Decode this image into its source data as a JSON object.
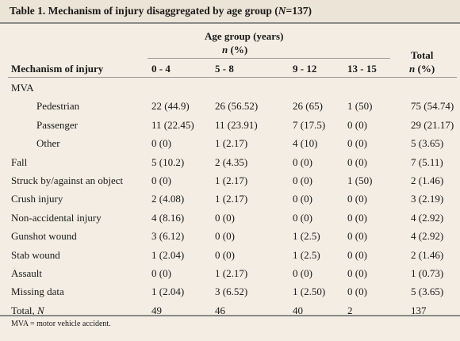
{
  "title": {
    "prefix": "Table 1. Mechanism of injury disaggregated by age group (",
    "n_symbol": "N",
    "suffix": "=137)"
  },
  "header": {
    "mechanism": "Mechanism of injury",
    "age_group": "Age group (years)",
    "age_group_unit_n": "n",
    "age_group_unit_pct": " (%)",
    "age_cols": [
      "0 - 4",
      "5 - 8",
      "9 - 12",
      "13 - 15"
    ],
    "total": "Total",
    "total_unit_n": "n",
    "total_unit_pct": " (%)"
  },
  "rows": [
    {
      "label": "MVA",
      "indent": 0,
      "cells": [
        "",
        "",
        "",
        "",
        ""
      ]
    },
    {
      "label": "Pedestrian",
      "indent": 2,
      "cells": [
        "22 (44.9)",
        "26 (56.52)",
        "26 (65)",
        "1 (50)",
        "75 (54.74)"
      ]
    },
    {
      "label": "Passenger",
      "indent": 2,
      "cells": [
        "11 (22.45)",
        "11 (23.91)",
        "7 (17.5)",
        "0 (0)",
        "29 (21.17)"
      ]
    },
    {
      "label": "Other",
      "indent": 2,
      "cells": [
        "0 (0)",
        "1 (2.17)",
        "4 (10)",
        "0 (0)",
        "5 (3.65)"
      ]
    },
    {
      "label": "Fall",
      "indent": 0,
      "cells": [
        "5 (10.2)",
        "2 (4.35)",
        "0 (0)",
        "0 (0)",
        "7 (5.11)"
      ]
    },
    {
      "label": "Struck by/against an object",
      "indent": 0,
      "cells": [
        "0 (0)",
        "1 (2.17)",
        "0 (0)",
        "1 (50)",
        "2 (1.46)"
      ]
    },
    {
      "label": "Crush injury",
      "indent": 0,
      "cells": [
        "2 (4.08)",
        "1 (2.17)",
        "0 (0)",
        "0 (0)",
        "3 (2.19)"
      ]
    },
    {
      "label": "Non-accidental injury",
      "indent": 0,
      "cells": [
        "4 (8.16)",
        "0 (0)",
        "0 (0)",
        "0 (0)",
        "4 (2.92)"
      ]
    },
    {
      "label": "Gunshot wound",
      "indent": 0,
      "cells": [
        "3 (6.12)",
        "0 (0)",
        "1 (2.5)",
        "0 (0)",
        "4 (2.92)"
      ]
    },
    {
      "label": "Stab wound",
      "indent": 0,
      "cells": [
        "1 (2.04)",
        "0 (0)",
        "1 (2.5)",
        "0 (0)",
        "2 (1.46)"
      ]
    },
    {
      "label": "Assault",
      "indent": 0,
      "cells": [
        "0 (0)",
        "1 (2.17)",
        "0 (0)",
        "0 (0)",
        "1 (0.73)"
      ]
    },
    {
      "label": "Missing data",
      "indent": 0,
      "cells": [
        "1 (2.04)",
        "3 (6.52)",
        "1 (2.50)",
        "0 (0)",
        "5 (3.65)"
      ]
    }
  ],
  "total_row": {
    "label": "Total, ",
    "label_n": "N",
    "cells": [
      "49",
      "46",
      "40",
      "2",
      "137"
    ]
  },
  "footnote": "MVA = motor vehicle accident."
}
